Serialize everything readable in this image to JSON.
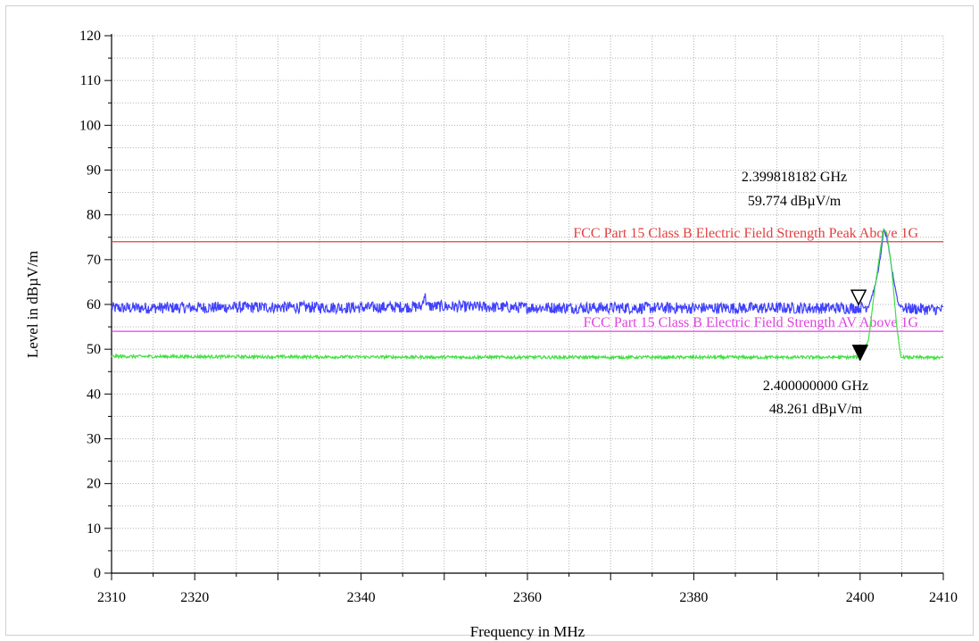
{
  "chart_data": {
    "type": "line",
    "xlabel": "Frequency in MHz",
    "ylabel": "Level in dBµV/m",
    "xlim": [
      2310,
      2410
    ],
    "ylim": [
      0,
      120
    ],
    "x_ticks": [
      2310,
      2320,
      2340,
      2360,
      2380,
      2400,
      2410
    ],
    "x_minor_ticks": [
      2330,
      2350,
      2370,
      2390
    ],
    "y_ticks": [
      0,
      10,
      20,
      30,
      40,
      50,
      60,
      70,
      80,
      90,
      100,
      110,
      120
    ],
    "grid": true,
    "series": [
      {
        "color": "#4040ff",
        "x": [
          2310,
          2320,
          2330,
          2340,
          2347.3,
          2347.6,
          2348,
          2360,
          2380,
          2399,
          2400,
          2401,
          2401.8,
          2402.5,
          2402.8,
          2403.2,
          2403.8,
          2404.6,
          2405.5,
          2410
        ],
        "y": [
          59.2,
          59.3,
          59.4,
          59.3,
          59.5,
          62.4,
          59.6,
          59.3,
          59.2,
          59.2,
          59.3,
          59.6,
          64,
          71,
          76.6,
          75,
          68,
          60,
          59.1,
          58.8
        ]
      },
      {
        "color": "#40e040",
        "x": [
          2310,
          2330,
          2360,
          2380,
          2399,
          2400,
          2401,
          2401.8,
          2402.5,
          2402.8,
          2403.2,
          2403.8,
          2404.4,
          2404.9,
          2410
        ],
        "y": [
          48.4,
          48.3,
          48.2,
          48.2,
          48.2,
          48.3,
          52,
          64,
          73,
          76.8,
          76,
          68,
          55,
          48.2,
          48.1
        ]
      }
    ],
    "limit_lines": [
      {
        "label": "FCC Part 15 Class B Electric Field Strength Peak Above 1G",
        "value": 74,
        "color": "#e04040"
      },
      {
        "label": "FCC Part 15 Class B Electric Field Strength AV Above 1G",
        "value": 54,
        "color": "#e040e0"
      }
    ],
    "markers": [
      {
        "symbol": "open-triangle",
        "x": 2399.818182,
        "y": 59.774,
        "freq_text": "2.399818182 GHz",
        "level_text": "59.774 dBµV/m",
        "label_position": "above"
      },
      {
        "symbol": "filled-triangle",
        "x": 2400.0,
        "y": 48.261,
        "freq_text": "2.400000000 GHz",
        "level_text": "48.261 dBµV/m",
        "label_position": "below"
      }
    ]
  }
}
